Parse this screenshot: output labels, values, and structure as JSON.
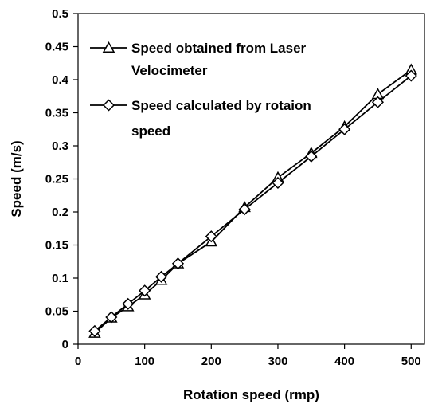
{
  "chart_data": {
    "type": "line",
    "title": "",
    "xlabel": "Rotation speed (rmp)",
    "ylabel": "Speed (m/s)",
    "xlim": [
      0,
      520
    ],
    "ylim": [
      0,
      0.5
    ],
    "x_ticks": [
      0,
      100,
      200,
      300,
      400,
      500
    ],
    "y_ticks": [
      0,
      0.05,
      0.1,
      0.15,
      0.2,
      0.25,
      0.3,
      0.35,
      0.4,
      0.45,
      0.5
    ],
    "x_tick_labels": [
      "0",
      "100",
      "200",
      "300",
      "400",
      "500"
    ],
    "y_tick_labels": [
      "0",
      "0.05",
      "0.1",
      "0.15",
      "0.2",
      "0.25",
      "0.3",
      "0.35",
      "0.4",
      "0.45",
      "0.5"
    ],
    "grid": false,
    "legend_position": "top-left",
    "x": [
      25,
      50,
      75,
      100,
      125,
      150,
      200,
      250,
      300,
      350,
      400,
      450,
      500
    ],
    "series": [
      {
        "name_lines": [
          "Speed obtained from Laser",
          "Velocimeter"
        ],
        "marker": "triangle",
        "color": "#000000",
        "values": [
          0.017,
          0.04,
          0.057,
          0.075,
          0.097,
          0.122,
          0.155,
          0.207,
          0.252,
          0.289,
          0.329,
          0.378,
          0.415
        ]
      },
      {
        "name_lines": [
          "Speed calculated by rotaion",
          "speed"
        ],
        "marker": "diamond",
        "color": "#000000",
        "values": [
          0.02,
          0.041,
          0.061,
          0.081,
          0.102,
          0.122,
          0.163,
          0.204,
          0.244,
          0.284,
          0.325,
          0.366,
          0.406
        ]
      }
    ]
  }
}
